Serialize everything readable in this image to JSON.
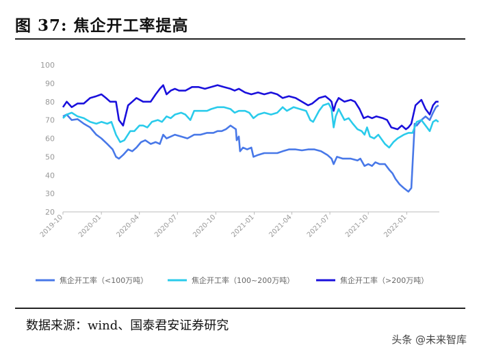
{
  "header": {
    "title": "图 37:  焦企开工率提高"
  },
  "footer": {
    "source": "数据来源：wind、国泰君安证券研究",
    "watermark": "头条 @未来智库"
  },
  "colors": {
    "small": "#4878E8",
    "medium": "#2ACBEB",
    "large": "#1A10DC",
    "axis": "#999999"
  },
  "chart_data": {
    "type": "line",
    "ylim": [
      20,
      100
    ],
    "yticks": [
      20,
      30,
      40,
      50,
      60,
      70,
      80,
      90,
      100
    ],
    "x_start": "2019-10-01",
    "x_end": "2022-03-20",
    "xtick_labels": [
      "2019-10",
      "2020-01",
      "2020-04",
      "2020-07",
      "2020-10",
      "2021-01",
      "2021-04",
      "2021-07",
      "2021-10",
      "2022-01"
    ],
    "series": [
      {
        "name": "焦企开工率（<100万吨）",
        "color": "#4878E8",
        "points": [
          [
            "2019-10-01",
            72
          ],
          [
            "2019-10-10",
            73
          ],
          [
            "2019-10-22",
            70
          ],
          [
            "2019-11-05",
            70.5
          ],
          [
            "2019-11-20",
            68
          ],
          [
            "2019-12-05",
            66
          ],
          [
            "2019-12-20",
            62
          ],
          [
            "2020-01-01",
            60
          ],
          [
            "2020-01-15",
            57
          ],
          [
            "2020-01-28",
            54
          ],
          [
            "2020-02-05",
            50
          ],
          [
            "2020-02-12",
            49
          ],
          [
            "2020-02-22",
            51
          ],
          [
            "2020-03-05",
            54
          ],
          [
            "2020-03-15",
            53
          ],
          [
            "2020-03-25",
            55
          ],
          [
            "2020-04-05",
            58
          ],
          [
            "2020-04-15",
            59
          ],
          [
            "2020-04-28",
            57
          ],
          [
            "2020-05-10",
            58
          ],
          [
            "2020-05-20",
            57
          ],
          [
            "2020-05-28",
            62
          ],
          [
            "2020-06-05",
            60
          ],
          [
            "2020-06-15",
            61
          ],
          [
            "2020-06-25",
            62
          ],
          [
            "2020-07-10",
            61
          ],
          [
            "2020-07-25",
            60
          ],
          [
            "2020-08-10",
            62
          ],
          [
            "2020-08-25",
            62
          ],
          [
            "2020-09-10",
            63
          ],
          [
            "2020-09-25",
            63
          ],
          [
            "2020-10-05",
            64
          ],
          [
            "2020-10-15",
            64
          ],
          [
            "2020-10-25",
            65
          ],
          [
            "2020-11-05",
            67
          ],
          [
            "2020-11-18",
            65
          ],
          [
            "2020-11-20",
            59
          ],
          [
            "2020-11-25",
            61
          ],
          [
            "2020-11-28",
            53
          ],
          [
            "2020-12-05",
            55
          ],
          [
            "2020-12-15",
            54
          ],
          [
            "2020-12-25",
            55
          ],
          [
            "2020-12-30",
            50
          ],
          [
            "2021-01-10",
            51
          ],
          [
            "2021-01-25",
            52
          ],
          [
            "2021-02-10",
            52
          ],
          [
            "2021-02-25",
            52
          ],
          [
            "2021-03-10",
            53
          ],
          [
            "2021-03-25",
            54
          ],
          [
            "2021-04-10",
            54
          ],
          [
            "2021-04-25",
            53.5
          ],
          [
            "2021-05-10",
            54
          ],
          [
            "2021-05-25",
            54
          ],
          [
            "2021-06-10",
            53
          ],
          [
            "2021-06-25",
            51
          ],
          [
            "2021-07-05",
            49
          ],
          [
            "2021-07-10",
            46
          ],
          [
            "2021-07-18",
            50
          ],
          [
            "2021-08-01",
            49
          ],
          [
            "2021-08-20",
            49
          ],
          [
            "2021-09-05",
            48
          ],
          [
            "2021-09-12",
            49
          ],
          [
            "2021-09-22",
            45
          ],
          [
            "2021-10-01",
            46
          ],
          [
            "2021-10-10",
            45
          ],
          [
            "2021-10-18",
            47
          ],
          [
            "2021-10-28",
            46
          ],
          [
            "2021-11-10",
            46
          ],
          [
            "2021-11-20",
            43
          ],
          [
            "2021-11-28",
            41
          ],
          [
            "2021-12-05",
            38
          ],
          [
            "2021-12-15",
            35
          ],
          [
            "2021-12-25",
            33
          ],
          [
            "2022-01-05",
            31
          ],
          [
            "2022-01-12",
            33
          ],
          [
            "2022-01-20",
            68
          ],
          [
            "2022-01-25",
            67
          ],
          [
            "2022-02-05",
            70
          ],
          [
            "2022-02-15",
            72
          ],
          [
            "2022-02-25",
            70
          ],
          [
            "2022-03-05",
            74
          ],
          [
            "2022-03-12",
            77
          ],
          [
            "2022-03-18",
            78
          ]
        ]
      },
      {
        "name": "焦企开工率（100~200万吨）",
        "color": "#2ACBEB",
        "points": [
          [
            "2019-10-01",
            71
          ],
          [
            "2019-10-10",
            73
          ],
          [
            "2019-10-22",
            74
          ],
          [
            "2019-11-05",
            72
          ],
          [
            "2019-11-20",
            71
          ],
          [
            "2019-12-05",
            69
          ],
          [
            "2019-12-20",
            68
          ],
          [
            "2020-01-01",
            69
          ],
          [
            "2020-01-15",
            68
          ],
          [
            "2020-01-25",
            69
          ],
          [
            "2020-02-05",
            62
          ],
          [
            "2020-02-15",
            58
          ],
          [
            "2020-02-25",
            59
          ],
          [
            "2020-03-10",
            64
          ],
          [
            "2020-03-20",
            64
          ],
          [
            "2020-04-01",
            67
          ],
          [
            "2020-04-10",
            67
          ],
          [
            "2020-04-20",
            66
          ],
          [
            "2020-05-01",
            69
          ],
          [
            "2020-05-15",
            70
          ],
          [
            "2020-05-25",
            69
          ],
          [
            "2020-06-05",
            72
          ],
          [
            "2020-06-15",
            71
          ],
          [
            "2020-06-25",
            73
          ],
          [
            "2020-07-10",
            74
          ],
          [
            "2020-07-20",
            73
          ],
          [
            "2020-08-01",
            70
          ],
          [
            "2020-08-10",
            75
          ],
          [
            "2020-08-25",
            75
          ],
          [
            "2020-09-10",
            75
          ],
          [
            "2020-09-20",
            76
          ],
          [
            "2020-10-05",
            77
          ],
          [
            "2020-10-20",
            77
          ],
          [
            "2020-11-05",
            76
          ],
          [
            "2020-11-15",
            74
          ],
          [
            "2020-11-25",
            75
          ],
          [
            "2020-12-10",
            75
          ],
          [
            "2020-12-20",
            74
          ],
          [
            "2020-12-30",
            71
          ],
          [
            "2021-01-10",
            73
          ],
          [
            "2021-01-25",
            74
          ],
          [
            "2021-02-10",
            73
          ],
          [
            "2021-02-25",
            74
          ],
          [
            "2021-03-10",
            77
          ],
          [
            "2021-03-20",
            75
          ],
          [
            "2021-04-05",
            77
          ],
          [
            "2021-04-20",
            76
          ],
          [
            "2021-05-05",
            75
          ],
          [
            "2021-05-15",
            70
          ],
          [
            "2021-05-22",
            69
          ],
          [
            "2021-06-05",
            75
          ],
          [
            "2021-06-15",
            78
          ],
          [
            "2021-06-28",
            79
          ],
          [
            "2021-07-05",
            76
          ],
          [
            "2021-07-10",
            66
          ],
          [
            "2021-07-15",
            72
          ],
          [
            "2021-07-22",
            76
          ],
          [
            "2021-08-05",
            70
          ],
          [
            "2021-08-15",
            71
          ],
          [
            "2021-08-25",
            68
          ],
          [
            "2021-09-05",
            65
          ],
          [
            "2021-09-15",
            64
          ],
          [
            "2021-09-22",
            62
          ],
          [
            "2021-09-28",
            66
          ],
          [
            "2021-10-05",
            61
          ],
          [
            "2021-10-15",
            60
          ],
          [
            "2021-10-25",
            62
          ],
          [
            "2021-11-10",
            57
          ],
          [
            "2021-11-20",
            55
          ],
          [
            "2021-11-30",
            58
          ],
          [
            "2021-12-10",
            60
          ],
          [
            "2021-12-25",
            62
          ],
          [
            "2022-01-05",
            63
          ],
          [
            "2022-01-15",
            63
          ],
          [
            "2022-01-25",
            69
          ],
          [
            "2022-02-05",
            70
          ],
          [
            "2022-02-15",
            67
          ],
          [
            "2022-02-25",
            64
          ],
          [
            "2022-03-05",
            69
          ],
          [
            "2022-03-12",
            70
          ],
          [
            "2022-03-18",
            69
          ]
        ]
      },
      {
        "name": "焦企开工率（>200万吨）",
        "color": "#1A10DC",
        "points": [
          [
            "2019-10-01",
            77
          ],
          [
            "2019-10-10",
            80
          ],
          [
            "2019-10-22",
            77
          ],
          [
            "2019-11-05",
            79
          ],
          [
            "2019-11-20",
            79
          ],
          [
            "2019-12-05",
            82
          ],
          [
            "2019-12-20",
            83
          ],
          [
            "2020-01-01",
            84
          ],
          [
            "2020-01-12",
            82
          ],
          [
            "2020-01-22",
            80
          ],
          [
            "2020-02-05",
            80
          ],
          [
            "2020-02-12",
            70
          ],
          [
            "2020-02-22",
            67
          ],
          [
            "2020-03-05",
            78
          ],
          [
            "2020-03-15",
            80
          ],
          [
            "2020-03-25",
            82
          ],
          [
            "2020-04-10",
            80
          ],
          [
            "2020-04-20",
            80
          ],
          [
            "2020-04-28",
            80
          ],
          [
            "2020-05-10",
            84
          ],
          [
            "2020-05-20",
            87
          ],
          [
            "2020-05-28",
            89
          ],
          [
            "2020-06-05",
            84
          ],
          [
            "2020-06-15",
            86
          ],
          [
            "2020-06-25",
            87
          ],
          [
            "2020-07-05",
            86
          ],
          [
            "2020-07-20",
            86
          ],
          [
            "2020-08-05",
            88
          ],
          [
            "2020-08-20",
            88
          ],
          [
            "2020-09-05",
            87
          ],
          [
            "2020-09-20",
            88
          ],
          [
            "2020-10-05",
            89
          ],
          [
            "2020-10-20",
            88
          ],
          [
            "2020-11-05",
            87
          ],
          [
            "2020-11-15",
            86
          ],
          [
            "2020-11-25",
            87
          ],
          [
            "2020-12-10",
            85
          ],
          [
            "2020-12-25",
            84
          ],
          [
            "2021-01-10",
            85
          ],
          [
            "2021-01-25",
            84
          ],
          [
            "2021-02-10",
            85
          ],
          [
            "2021-02-25",
            84
          ],
          [
            "2021-03-10",
            82
          ],
          [
            "2021-03-25",
            83
          ],
          [
            "2021-04-10",
            82
          ],
          [
            "2021-04-25",
            80
          ],
          [
            "2021-05-10",
            78
          ],
          [
            "2021-05-20",
            79
          ],
          [
            "2021-06-05",
            82
          ],
          [
            "2021-06-20",
            83
          ],
          [
            "2021-07-01",
            81
          ],
          [
            "2021-07-05",
            80
          ],
          [
            "2021-07-10",
            75
          ],
          [
            "2021-07-15",
            79
          ],
          [
            "2021-07-22",
            82
          ],
          [
            "2021-08-05",
            80
          ],
          [
            "2021-08-20",
            81
          ],
          [
            "2021-08-30",
            80
          ],
          [
            "2021-09-10",
            76
          ],
          [
            "2021-09-20",
            71
          ],
          [
            "2021-09-30",
            72
          ],
          [
            "2021-10-10",
            71
          ],
          [
            "2021-10-20",
            72
          ],
          [
            "2021-11-05",
            71
          ],
          [
            "2021-11-15",
            70
          ],
          [
            "2021-11-25",
            66
          ],
          [
            "2021-12-10",
            65
          ],
          [
            "2021-12-20",
            67
          ],
          [
            "2021-12-30",
            65
          ],
          [
            "2022-01-05",
            66
          ],
          [
            "2022-01-12",
            68
          ],
          [
            "2022-01-22",
            78
          ],
          [
            "2022-02-05",
            81
          ],
          [
            "2022-02-15",
            76
          ],
          [
            "2022-02-25",
            73
          ],
          [
            "2022-03-05",
            78
          ],
          [
            "2022-03-12",
            80
          ],
          [
            "2022-03-18",
            80
          ]
        ]
      }
    ]
  }
}
